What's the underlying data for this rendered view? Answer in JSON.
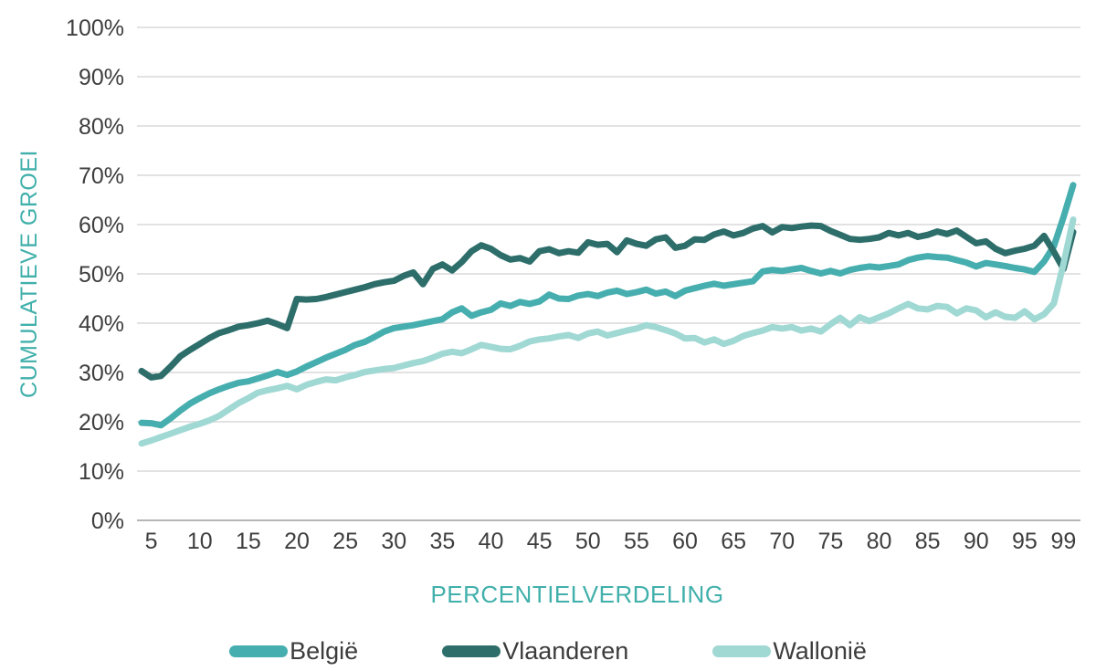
{
  "chart_data": {
    "type": "line",
    "title": "",
    "xlabel": "PERCENTIELVERDELING",
    "ylabel": "CUMULATIEVE GROEI",
    "axis_title_color": "#41B0AB",
    "tick_text_color": "#3e3e3e",
    "grid": "horizontal",
    "gridline_color": "#d9d9d9",
    "baseline_color": "#b5b5b5",
    "legend_position": "bottom",
    "x_axis": {
      "min": 4,
      "max": 100,
      "tick_values": [
        5,
        10,
        15,
        20,
        25,
        30,
        35,
        40,
        45,
        50,
        55,
        60,
        65,
        70,
        75,
        80,
        85,
        90,
        95,
        99
      ]
    },
    "y_axis": {
      "min": 0,
      "max": 100,
      "tick_step": 10,
      "tick_labels": [
        "0%",
        "10%",
        "20%",
        "30%",
        "40%",
        "50%",
        "60%",
        "70%",
        "80%",
        "90%",
        "100%"
      ]
    },
    "percentiles": [
      4,
      5,
      6,
      7,
      8,
      9,
      10,
      11,
      12,
      13,
      14,
      15,
      16,
      17,
      18,
      19,
      20,
      21,
      22,
      23,
      24,
      25,
      26,
      27,
      28,
      29,
      30,
      31,
      32,
      33,
      34,
      35,
      36,
      37,
      38,
      39,
      40,
      41,
      42,
      43,
      44,
      45,
      46,
      47,
      48,
      49,
      50,
      51,
      52,
      53,
      54,
      55,
      56,
      57,
      58,
      59,
      60,
      61,
      62,
      63,
      64,
      65,
      66,
      67,
      68,
      69,
      70,
      71,
      72,
      73,
      74,
      75,
      76,
      77,
      78,
      79,
      80,
      81,
      82,
      83,
      84,
      85,
      86,
      87,
      88,
      89,
      90,
      91,
      92,
      93,
      94,
      95,
      96,
      97,
      98,
      99,
      100
    ],
    "series": [
      {
        "name": "België",
        "color": "#46AEAE",
        "values": [
          19.8,
          19.7,
          19.3,
          20.7,
          22.3,
          23.7,
          24.8,
          25.8,
          26.6,
          27.3,
          27.9,
          28.2,
          28.8,
          29.4,
          30.1,
          29.5,
          30.2,
          31.2,
          32.1,
          33.0,
          33.8,
          34.6,
          35.6,
          36.2,
          37.2,
          38.3,
          39.0,
          39.3,
          39.6,
          40.0,
          40.4,
          40.8,
          42.2,
          43.0,
          41.5,
          42.2,
          42.7,
          44.0,
          43.5,
          44.3,
          43.9,
          44.4,
          45.8,
          45.0,
          44.9,
          45.6,
          45.9,
          45.5,
          46.2,
          46.6,
          45.9,
          46.3,
          46.8,
          46.0,
          46.4,
          45.5,
          46.6,
          47.1,
          47.6,
          48.0,
          47.6,
          47.9,
          48.2,
          48.5,
          50.5,
          50.8,
          50.6,
          50.9,
          51.2,
          50.6,
          50.1,
          50.6,
          50.1,
          50.8,
          51.2,
          51.5,
          51.3,
          51.6,
          51.9,
          52.8,
          53.3,
          53.6,
          53.4,
          53.3,
          52.8,
          52.3,
          51.5,
          52.2,
          51.9,
          51.6,
          51.2,
          50.9,
          50.4,
          52.5,
          55.6,
          61.5,
          68.0
        ]
      },
      {
        "name": "Vlaanderen",
        "color": "#2D6E6B",
        "values": [
          30.3,
          29.0,
          29.3,
          31.2,
          33.3,
          34.6,
          35.8,
          37.0,
          38.0,
          38.6,
          39.3,
          39.6,
          40.0,
          40.5,
          39.8,
          39.0,
          44.9,
          44.8,
          44.9,
          45.3,
          45.8,
          46.3,
          46.8,
          47.3,
          47.9,
          48.3,
          48.6,
          49.6,
          50.3,
          47.9,
          51.0,
          51.9,
          50.7,
          52.4,
          54.6,
          55.8,
          55.1,
          53.8,
          52.9,
          53.2,
          52.5,
          54.6,
          55.0,
          54.2,
          54.6,
          54.3,
          56.4,
          55.9,
          56.1,
          54.4,
          56.8,
          56.1,
          55.7,
          57.0,
          57.4,
          55.3,
          55.7,
          57.0,
          56.9,
          58.0,
          58.6,
          57.8,
          58.3,
          59.2,
          59.7,
          58.4,
          59.5,
          59.3,
          59.6,
          59.8,
          59.7,
          58.7,
          57.9,
          57.1,
          56.9,
          57.1,
          57.4,
          58.3,
          57.8,
          58.3,
          57.5,
          57.9,
          58.6,
          58.1,
          58.8,
          57.5,
          56.2,
          56.6,
          55.1,
          54.2,
          54.7,
          55.1,
          55.7,
          57.7,
          54.5,
          51.0,
          58.5
        ]
      },
      {
        "name": "Wallonië",
        "color": "#A0D8D4",
        "values": [
          15.6,
          16.2,
          16.9,
          17.6,
          18.3,
          19.0,
          19.6,
          20.3,
          21.2,
          22.5,
          23.8,
          24.8,
          25.9,
          26.4,
          26.8,
          27.3,
          26.6,
          27.5,
          28.1,
          28.6,
          28.4,
          29.0,
          29.5,
          30.1,
          30.4,
          30.7,
          30.9,
          31.4,
          31.9,
          32.3,
          33.0,
          33.8,
          34.2,
          33.9,
          34.7,
          35.6,
          35.2,
          34.8,
          34.7,
          35.4,
          36.3,
          36.7,
          36.9,
          37.3,
          37.6,
          37.0,
          37.9,
          38.3,
          37.5,
          38.0,
          38.5,
          38.9,
          39.6,
          39.2,
          38.6,
          37.9,
          36.9,
          37.0,
          36.1,
          36.7,
          35.8,
          36.4,
          37.4,
          38.0,
          38.5,
          39.2,
          38.9,
          39.2,
          38.5,
          38.9,
          38.3,
          39.8,
          41.1,
          39.6,
          41.2,
          40.4,
          41.2,
          42.0,
          43.0,
          43.9,
          43.0,
          42.8,
          43.5,
          43.3,
          42.0,
          43.0,
          42.6,
          41.2,
          42.2,
          41.3,
          41.1,
          42.4,
          40.8,
          41.8,
          44.0,
          52.0,
          61.0
        ]
      }
    ]
  }
}
